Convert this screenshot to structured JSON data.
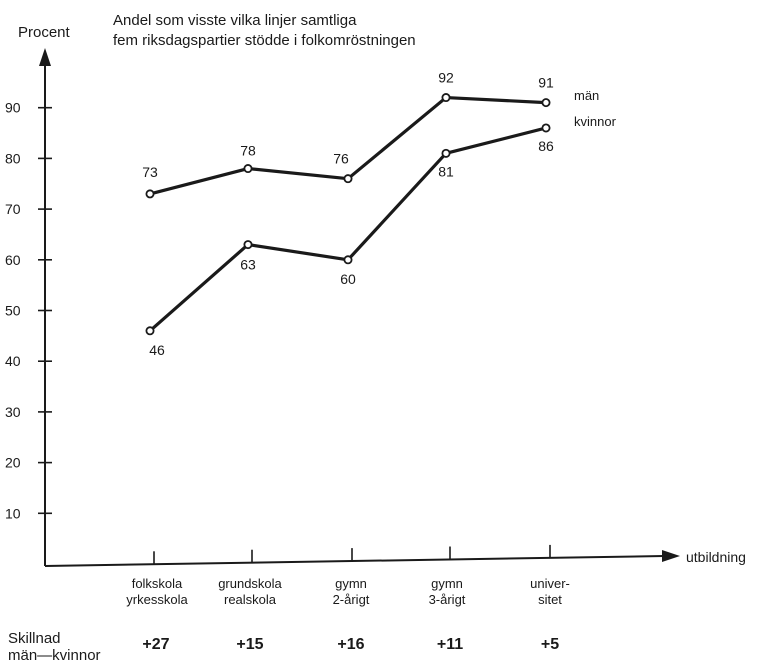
{
  "chart_data": {
    "type": "line",
    "title": "Andel som visste vilka linjer samtliga",
    "subtitle": "fem riksdagspartier stödde i folkomröstningen",
    "ylabel": "Procent",
    "xlabel": "utbildning",
    "ylim": [
      0,
      100
    ],
    "yticks": [
      10,
      20,
      30,
      40,
      50,
      60,
      70,
      80,
      90
    ],
    "categories": [
      [
        "folkskola",
        "yrkesskola"
      ],
      [
        "grundskola",
        "realskola"
      ],
      [
        "gymn",
        "2-årigt"
      ],
      [
        "gymn",
        "3-årigt"
      ],
      [
        "univer-",
        "sitet"
      ]
    ],
    "series": [
      {
        "name": "män",
        "values": [
          73,
          78,
          76,
          92,
          91
        ]
      },
      {
        "name": "kvinnor",
        "values": [
          46,
          63,
          60,
          81,
          86
        ]
      }
    ],
    "difference": {
      "label_line1": "Skillnad",
      "label_line2": "män—kvinnor",
      "values": [
        "+27",
        "+15",
        "+16",
        "+11",
        "+5"
      ]
    },
    "grid": false,
    "legend": "inline-right"
  }
}
